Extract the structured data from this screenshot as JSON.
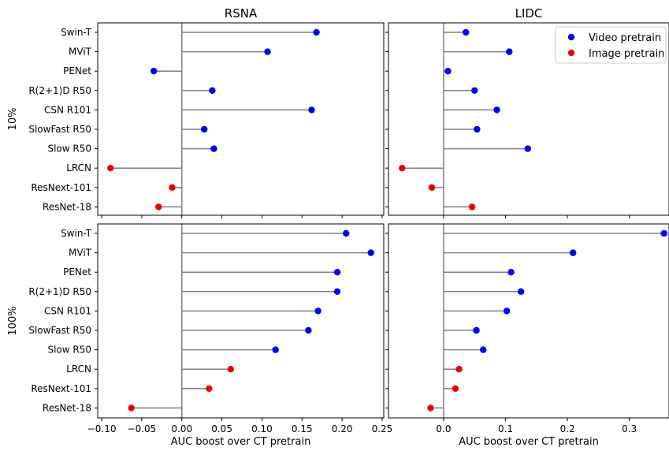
{
  "chart_data": {
    "type": "lollipop",
    "models": [
      "Swin-T",
      "MViT",
      "PENet",
      "R(2+1)D R50",
      "CSN R101",
      "SlowFast R50",
      "Slow R50",
      "LRCN",
      "ResNext-101",
      "ResNet-18"
    ],
    "pretrain_type": [
      "video",
      "video",
      "video",
      "video",
      "video",
      "video",
      "video",
      "image",
      "image",
      "image"
    ],
    "column_titles": [
      "RSNA",
      "LIDC"
    ],
    "row_labels": [
      "10%",
      "100%"
    ],
    "xlabel": "AUC boost over CT pretrain",
    "legend": {
      "entries": [
        {
          "label": "Video pretrain",
          "color": "#0000ee"
        },
        {
          "label": "Image pretrain",
          "color": "#ee0000"
        }
      ],
      "placement": "top-right of LIDC 10% panel"
    },
    "colors": {
      "video": "#0000ee",
      "image": "#ee0000",
      "stem": "#808080",
      "baseline": "#808080"
    },
    "x_axes": {
      "RSNA": {
        "xlim": [
          -0.105,
          0.252
        ],
        "ticks": [
          -0.1,
          -0.05,
          0.0,
          0.05,
          0.1,
          0.15,
          0.2,
          0.25
        ],
        "tick_labels": [
          "−0.10",
          "−0.05",
          "0.00",
          "0.05",
          "0.10",
          "0.15",
          "0.20",
          "0.25"
        ]
      },
      "LIDC": {
        "xlim": [
          -0.089,
          0.364
        ],
        "ticks": [
          0.0,
          0.1,
          0.2,
          0.3
        ],
        "tick_labels": [
          "0.0",
          "0.1",
          "0.2",
          "0.3"
        ]
      }
    },
    "panels": [
      {
        "dataset": "RSNA",
        "fraction": "10%",
        "values": [
          0.168,
          0.107,
          -0.035,
          0.038,
          0.162,
          0.028,
          0.04,
          -0.089,
          -0.012,
          -0.029
        ]
      },
      {
        "dataset": "LIDC",
        "fraction": "10%",
        "values": [
          0.036,
          0.106,
          0.007,
          0.05,
          0.086,
          0.054,
          0.136,
          -0.067,
          -0.019,
          0.046
        ]
      },
      {
        "dataset": "RSNA",
        "fraction": "100%",
        "values": [
          0.205,
          0.236,
          0.194,
          0.194,
          0.17,
          0.158,
          0.117,
          0.061,
          0.034,
          -0.063
        ]
      },
      {
        "dataset": "LIDC",
        "fraction": "100%",
        "values": [
          0.356,
          0.209,
          0.109,
          0.125,
          0.102,
          0.053,
          0.064,
          0.025,
          0.019,
          -0.021
        ]
      }
    ]
  }
}
